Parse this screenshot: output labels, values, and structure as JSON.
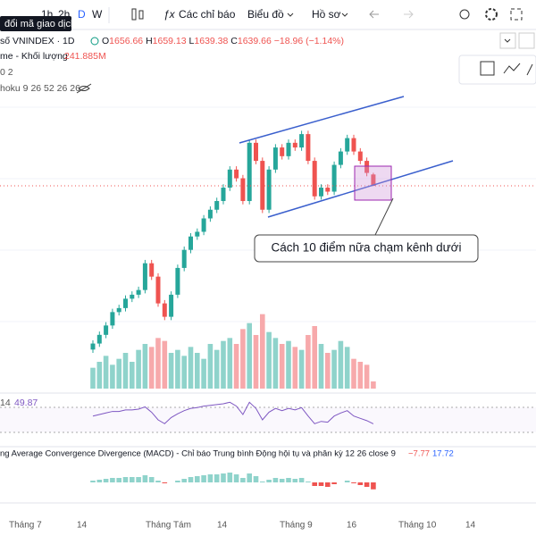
{
  "toolbar": {
    "intervals": [
      "1h",
      "2h",
      "D",
      "W"
    ],
    "indicators": "Các chỉ báo",
    "chart_type": "Biểu đồ",
    "profile": "Hồ sơ"
  },
  "tooltip": "đổi mã giao dịch",
  "legend": {
    "symbol": "số VNINDEX · 1D",
    "o": "O",
    "h": "H",
    "l": "L",
    "c": "C",
    "change": "−18.96 (−1.14%)",
    "volume_name": "me - Khối lượng",
    "volume_value": "241.885M",
    "line3": "0 2",
    "line4": "hoku 9 26 52 26 26"
  },
  "annotation": "Cách 10 điểm nữa chạm kênh dưới",
  "x_labels": [
    "Tháng 7",
    "14",
    "Tháng Tám",
    "14",
    "Tháng 9",
    "16",
    "Tháng 10",
    "14"
  ],
  "rsi_legend": "14",
  "macd_legend": "ng Average Convergence Divergence (MACD) - Chỉ báo Trung bình Động hội tụ và phân kỳ 12 26 close 9",
  "macd_values": [
    "−7.77",
    "17.72"
  ],
  "chart_data": {
    "type": "candlestick",
    "up_color": "#26a69a",
    "down_color": "#ef5350",
    "ylim": [
      1330,
      1864
    ],
    "open": [
      1395,
      1404,
      1417,
      1431,
      1451,
      1457,
      1471,
      1477,
      1484,
      1524,
      1504,
      1464,
      1444,
      1477,
      1517,
      1544,
      1564,
      1571,
      1591,
      1604,
      1617,
      1637,
      1664,
      1651,
      1617,
      1704,
      1677,
      1604,
      1664,
      1697,
      1684,
      1704,
      1697,
      1717,
      1677,
      1624,
      1637,
      1631,
      1671,
      1691,
      1711,
      1691,
      1677,
      1656.66
    ],
    "high": [
      1409,
      1422,
      1436,
      1456,
      1462,
      1476,
      1482,
      1489,
      1529,
      1529,
      1509,
      1469,
      1482,
      1522,
      1549,
      1569,
      1576,
      1596,
      1609,
      1622,
      1642,
      1669,
      1669,
      1656,
      1709,
      1709,
      1682,
      1669,
      1702,
      1702,
      1709,
      1709,
      1722,
      1722,
      1682,
      1642,
      1642,
      1676,
      1696,
      1716,
      1716,
      1696,
      1682,
      1659.13
    ],
    "low": [
      1390,
      1399,
      1412,
      1426,
      1446,
      1452,
      1466,
      1472,
      1479,
      1499,
      1459,
      1439,
      1439,
      1472,
      1512,
      1539,
      1559,
      1566,
      1586,
      1599,
      1612,
      1632,
      1646,
      1612,
      1612,
      1672,
      1599,
      1599,
      1659,
      1679,
      1679,
      1692,
      1692,
      1672,
      1619,
      1619,
      1626,
      1626,
      1666,
      1686,
      1686,
      1672,
      1654,
      1639.38
    ],
    "close": [
      1404,
      1417,
      1431,
      1451,
      1457,
      1471,
      1477,
      1484,
      1524,
      1504,
      1464,
      1444,
      1477,
      1517,
      1544,
      1564,
      1571,
      1591,
      1604,
      1617,
      1637,
      1664,
      1651,
      1617,
      1704,
      1677,
      1604,
      1664,
      1697,
      1684,
      1704,
      1697,
      1717,
      1677,
      1624,
      1637,
      1631,
      1671,
      1691,
      1711,
      1691,
      1677,
      1659,
      1639.66
    ],
    "volume": [
      700,
      900,
      1100,
      800,
      1000,
      1200,
      900,
      1300,
      1500,
      1400,
      1700,
      1600,
      1200,
      1300,
      1100,
      1400,
      1200,
      1000,
      1500,
      1300,
      1600,
      1700,
      1500,
      2000,
      2200,
      1800,
      2500,
      1900,
      1700,
      1500,
      1600,
      1400,
      1300,
      1800,
      2100,
      1500,
      1200,
      1300,
      1600,
      1400,
      1000,
      900,
      800,
      241.885
    ],
    "volume_lim": [
      0,
      3000
    ],
    "volume_up_color": "#8fd3cb",
    "volume_down_color": "#f7a9ab",
    "rsi": [
      60,
      62,
      64,
      66,
      66,
      68,
      68,
      69,
      72,
      65,
      55,
      50,
      58,
      63,
      67,
      70,
      71,
      73,
      74,
      75,
      76,
      78,
      73,
      62,
      78,
      70,
      55,
      65,
      70,
      67,
      70,
      68,
      71,
      60,
      50,
      53,
      52,
      60,
      64,
      67,
      60,
      57,
      54,
      49.87
    ],
    "rsi_lim": [
      20,
      90
    ],
    "rsi_color": "#7e57c2",
    "macd_hist": [
      2,
      3,
      4,
      5,
      5,
      6,
      6,
      6,
      8,
      6,
      2,
      -1,
      0,
      2,
      4,
      6,
      7,
      8,
      9,
      9,
      10,
      11,
      9,
      5,
      10,
      7,
      1,
      3,
      5,
      4,
      5,
      4,
      5,
      1,
      -4,
      -4,
      -5,
      -2,
      0,
      2,
      -1,
      -3,
      -5,
      -7.77
    ],
    "macd_lim": [
      -20,
      20
    ]
  }
}
